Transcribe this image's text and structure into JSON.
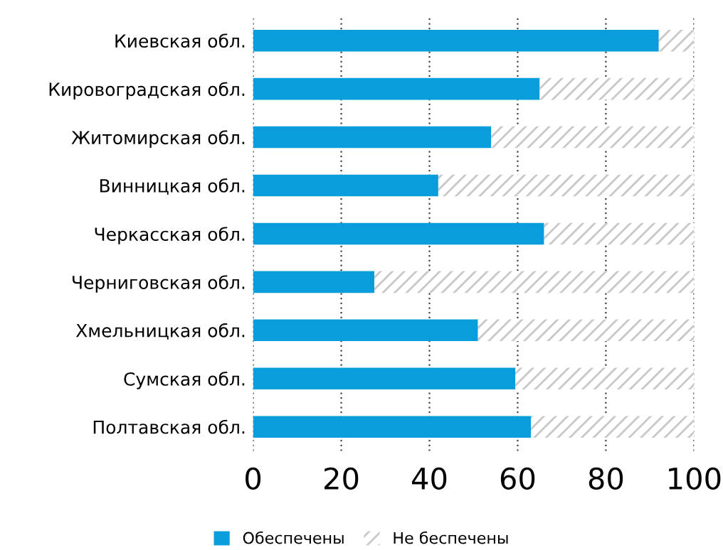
{
  "chart_data": {
    "type": "bar",
    "orientation": "horizontal",
    "stacked": true,
    "categories": [
      "Киевская обл.",
      "Кировоградская обл.",
      "Житомирская обл.",
      "Винницкая обл.",
      "Черкасская обл.",
      "Черниговская обл.",
      "Хмельницкая обл.",
      "Сумская обл.",
      "Полтавская обл."
    ],
    "series": [
      {
        "name": "Обеспечены",
        "color": "#0a9ddb",
        "values": [
          92,
          65,
          54,
          42,
          66,
          27.5,
          51,
          59.5,
          63
        ]
      },
      {
        "name": "Не беспечены",
        "color": "#c8c8c8",
        "values": [
          8,
          35,
          46,
          58,
          34,
          72.5,
          49,
          40.5,
          37
        ]
      }
    ],
    "xlim": [
      0,
      100
    ],
    "xticks": [
      0,
      20,
      40,
      60,
      80,
      100
    ],
    "grid": "x",
    "legend": "bottom"
  }
}
